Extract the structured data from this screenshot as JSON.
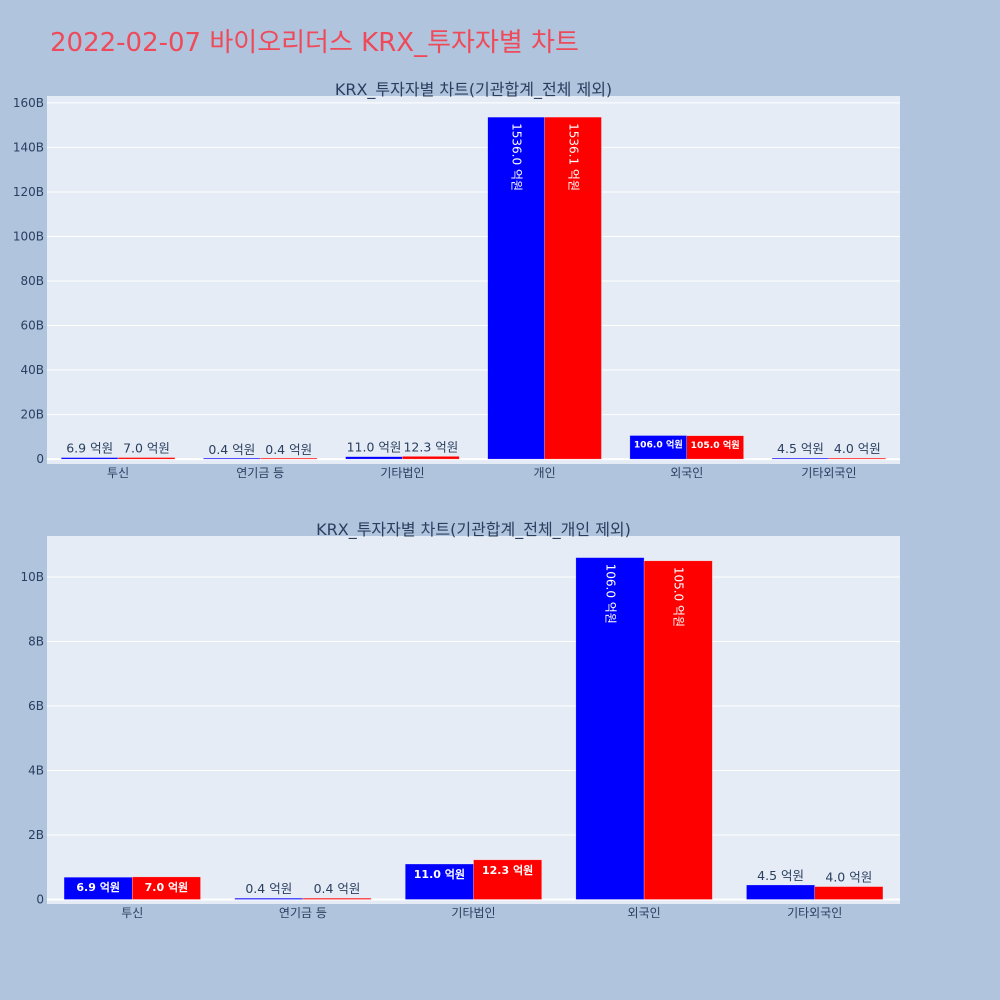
{
  "page_title": "2022-02-07 바이오리더스 KRX_투자자별 차트",
  "colors": {
    "series_a": "#0000ff",
    "series_b": "#ff0000",
    "plot_bg": "#e5ecf6",
    "page_bg": "#b0c4de",
    "title": "#ee4a5a",
    "axis_text": "#2a3f5f"
  },
  "chart_data": [
    {
      "type": "bar",
      "title": "KRX_투자자별 차트(기관합계_전체 제외)",
      "categories": [
        "투신",
        "연기금 등",
        "기타법인",
        "개인",
        "외국인",
        "기타외국인"
      ],
      "yticks": [
        0,
        20,
        40,
        60,
        80,
        100,
        120,
        140,
        160
      ],
      "ytick_labels": [
        "0",
        "20B",
        "40B",
        "60B",
        "80B",
        "100B",
        "120B",
        "140B",
        "160B"
      ],
      "ylim_billion": [
        -2.2,
        163.1
      ],
      "grid": true,
      "series": [
        {
          "values_billion": [
            0.69,
            0.04,
            1.1,
            153.6,
            10.6,
            0.45
          ],
          "labels": [
            "6.9 억원",
            "0.4 억원",
            "11.0 억원",
            "1536.0 억원",
            "106.0 억원",
            "4.5 억원"
          ]
        },
        {
          "values_billion": [
            0.7,
            0.04,
            1.23,
            153.61,
            10.5,
            0.4
          ],
          "labels": [
            "7.0 억원",
            "0.4 억원",
            "12.3 억원",
            "1536.1 억원",
            "105.0 억원",
            "4.0 억원"
          ]
        }
      ]
    },
    {
      "type": "bar",
      "title": "KRX_투자자별 차트(기관합계_전체_개인 제외)",
      "categories": [
        "투신",
        "연기금 등",
        "기타법인",
        "외국인",
        "기타외국인"
      ],
      "yticks": [
        0,
        2,
        4,
        6,
        8,
        10
      ],
      "ytick_labels": [
        "0",
        "2B",
        "4B",
        "6B",
        "8B",
        "10B"
      ],
      "ylim_billion": [
        -0.14,
        11.27
      ],
      "grid": true,
      "series": [
        {
          "values_billion": [
            0.69,
            0.04,
            1.1,
            10.6,
            0.45
          ],
          "labels": [
            "6.9 억원",
            "0.4 억원",
            "11.0 억원",
            "106.0 억원",
            "4.5 억원"
          ]
        },
        {
          "values_billion": [
            0.7,
            0.04,
            1.23,
            10.5,
            0.4
          ],
          "labels": [
            "7.0 억원",
            "0.4 억원",
            "12.3 억원",
            "105.0 억원",
            "4.0 억원"
          ]
        }
      ]
    }
  ]
}
